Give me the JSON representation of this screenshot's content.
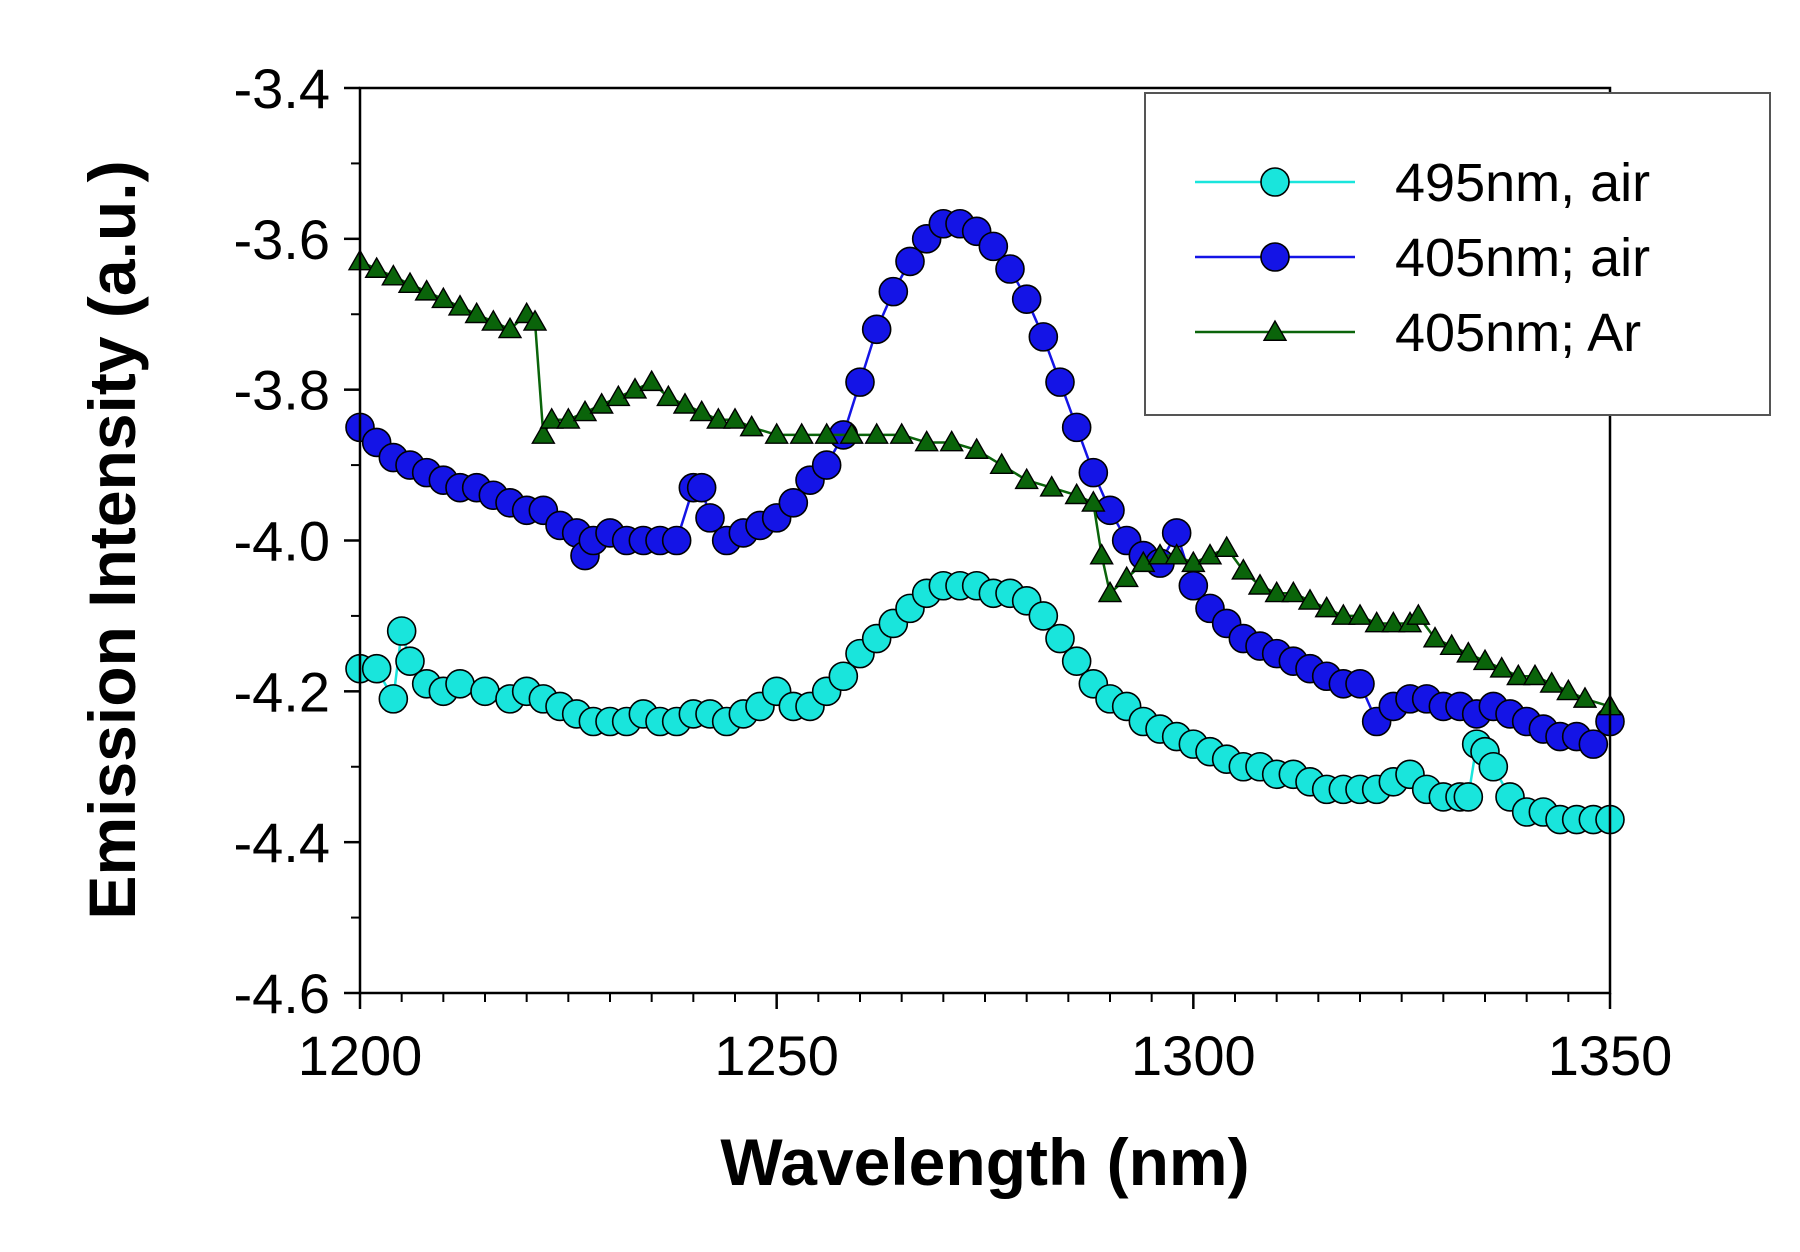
{
  "chart_data": {
    "type": "line",
    "title": "",
    "xlabel": "Wavelength (nm)",
    "ylabel": "Emission Intensity (a.u.)",
    "xlim": [
      1200,
      1350
    ],
    "ylim": [
      -4.6,
      -3.4
    ],
    "xticks": [
      1200,
      1250,
      1300,
      1350
    ],
    "yticks": [
      -4.6,
      -4.4,
      -4.2,
      -4.0,
      -3.8,
      -3.6,
      -3.4
    ],
    "xtick_labels": [
      "1200",
      "1250",
      "1300",
      "1350"
    ],
    "ytick_labels": [
      "-4.6",
      "-4.4",
      "-4.2",
      "-4.0",
      "-3.8",
      "-3.6",
      "-3.4"
    ],
    "grid": false,
    "legend_position": "top-right",
    "series": [
      {
        "name": "495nm, air",
        "color": "#19e5dc",
        "marker": "circle",
        "x": [
          1200,
          1202,
          1204,
          1205,
          1206,
          1208,
          1210,
          1212,
          1215,
          1218,
          1220,
          1222,
          1224,
          1226,
          1228,
          1230,
          1232,
          1234,
          1236,
          1238,
          1240,
          1242,
          1244,
          1246,
          1248,
          1250,
          1252,
          1254,
          1256,
          1258,
          1260,
          1262,
          1264,
          1266,
          1268,
          1270,
          1272,
          1274,
          1276,
          1278,
          1280,
          1282,
          1284,
          1286,
          1288,
          1290,
          1292,
          1294,
          1296,
          1298,
          1300,
          1302,
          1304,
          1306,
          1308,
          1310,
          1312,
          1314,
          1316,
          1318,
          1320,
          1322,
          1324,
          1326,
          1328,
          1330,
          1332,
          1333,
          1334,
          1335,
          1336,
          1338,
          1340,
          1342,
          1344,
          1346,
          1348,
          1350
        ],
        "y": [
          -4.17,
          -4.17,
          -4.21,
          -4.12,
          -4.16,
          -4.19,
          -4.2,
          -4.19,
          -4.2,
          -4.21,
          -4.2,
          -4.21,
          -4.22,
          -4.23,
          -4.24,
          -4.24,
          -4.24,
          -4.23,
          -4.24,
          -4.24,
          -4.23,
          -4.23,
          -4.24,
          -4.23,
          -4.22,
          -4.2,
          -4.22,
          -4.22,
          -4.2,
          -4.18,
          -4.15,
          -4.13,
          -4.11,
          -4.09,
          -4.07,
          -4.06,
          -4.06,
          -4.06,
          -4.07,
          -4.07,
          -4.08,
          -4.1,
          -4.13,
          -4.16,
          -4.19,
          -4.21,
          -4.22,
          -4.24,
          -4.25,
          -4.26,
          -4.27,
          -4.28,
          -4.29,
          -4.3,
          -4.3,
          -4.31,
          -4.31,
          -4.32,
          -4.33,
          -4.33,
          -4.33,
          -4.33,
          -4.32,
          -4.31,
          -4.33,
          -4.34,
          -4.34,
          -4.34,
          -4.27,
          -4.28,
          -4.3,
          -4.34,
          -4.36,
          -4.36,
          -4.37,
          -4.37,
          -4.37,
          -4.37
        ]
      },
      {
        "name": "405nm; air",
        "color": "#1414e6",
        "marker": "circle",
        "x": [
          1200,
          1202,
          1204,
          1206,
          1208,
          1210,
          1212,
          1214,
          1216,
          1218,
          1220,
          1222,
          1224,
          1226,
          1227,
          1228,
          1230,
          1232,
          1234,
          1236,
          1238,
          1240,
          1241,
          1242,
          1244,
          1246,
          1248,
          1250,
          1252,
          1254,
          1256,
          1258,
          1260,
          1262,
          1264,
          1266,
          1268,
          1270,
          1272,
          1274,
          1276,
          1278,
          1280,
          1282,
          1284,
          1286,
          1288,
          1290,
          1292,
          1294,
          1296,
          1298,
          1300,
          1302,
          1304,
          1306,
          1308,
          1310,
          1312,
          1314,
          1316,
          1318,
          1320,
          1322,
          1324,
          1326,
          1328,
          1330,
          1332,
          1334,
          1336,
          1338,
          1340,
          1342,
          1344,
          1346,
          1348,
          1350
        ],
        "y": [
          -3.85,
          -3.87,
          -3.89,
          -3.9,
          -3.91,
          -3.92,
          -3.93,
          -3.93,
          -3.94,
          -3.95,
          -3.96,
          -3.96,
          -3.98,
          -3.99,
          -4.02,
          -4.0,
          -3.99,
          -4.0,
          -4.0,
          -4.0,
          -4.0,
          -3.93,
          -3.93,
          -3.97,
          -4.0,
          -3.99,
          -3.98,
          -3.97,
          -3.95,
          -3.92,
          -3.9,
          -3.86,
          -3.79,
          -3.72,
          -3.67,
          -3.63,
          -3.6,
          -3.58,
          -3.58,
          -3.59,
          -3.61,
          -3.64,
          -3.68,
          -3.73,
          -3.79,
          -3.85,
          -3.91,
          -3.96,
          -4.0,
          -4.02,
          -4.03,
          -3.99,
          -4.06,
          -4.09,
          -4.11,
          -4.13,
          -4.14,
          -4.15,
          -4.16,
          -4.17,
          -4.18,
          -4.19,
          -4.19,
          -4.24,
          -4.22,
          -4.21,
          -4.21,
          -4.22,
          -4.22,
          -4.23,
          -4.22,
          -4.23,
          -4.24,
          -4.25,
          -4.26,
          -4.26,
          -4.27,
          -4.24
        ]
      },
      {
        "name": "405nm; Ar",
        "color": "#0a640a",
        "marker": "triangle",
        "x": [
          1200,
          1202,
          1204,
          1206,
          1208,
          1210,
          1212,
          1214,
          1216,
          1218,
          1220,
          1221,
          1222,
          1223,
          1225,
          1227,
          1229,
          1231,
          1233,
          1235,
          1237,
          1239,
          1241,
          1243,
          1245,
          1247,
          1250,
          1253,
          1256,
          1259,
          1262,
          1265,
          1268,
          1271,
          1274,
          1277,
          1280,
          1283,
          1286,
          1288,
          1289,
          1290,
          1292,
          1294,
          1296,
          1298,
          1300,
          1302,
          1304,
          1306,
          1308,
          1310,
          1312,
          1314,
          1316,
          1318,
          1320,
          1322,
          1324,
          1326,
          1327,
          1329,
          1331,
          1333,
          1335,
          1337,
          1339,
          1341,
          1343,
          1345,
          1347,
          1350
        ],
        "y": [
          -3.63,
          -3.64,
          -3.65,
          -3.66,
          -3.67,
          -3.68,
          -3.69,
          -3.7,
          -3.71,
          -3.72,
          -3.7,
          -3.71,
          -3.86,
          -3.84,
          -3.84,
          -3.83,
          -3.82,
          -3.81,
          -3.8,
          -3.79,
          -3.81,
          -3.82,
          -3.83,
          -3.84,
          -3.84,
          -3.85,
          -3.86,
          -3.86,
          -3.86,
          -3.86,
          -3.86,
          -3.86,
          -3.87,
          -3.87,
          -3.88,
          -3.9,
          -3.92,
          -3.93,
          -3.94,
          -3.95,
          -4.02,
          -4.07,
          -4.05,
          -4.03,
          -4.02,
          -4.02,
          -4.03,
          -4.02,
          -4.01,
          -4.04,
          -4.06,
          -4.07,
          -4.07,
          -4.08,
          -4.09,
          -4.1,
          -4.1,
          -4.11,
          -4.11,
          -4.11,
          -4.1,
          -4.13,
          -4.14,
          -4.15,
          -4.16,
          -4.17,
          -4.18,
          -4.18,
          -4.19,
          -4.2,
          -4.21,
          -4.22
        ]
      }
    ]
  }
}
